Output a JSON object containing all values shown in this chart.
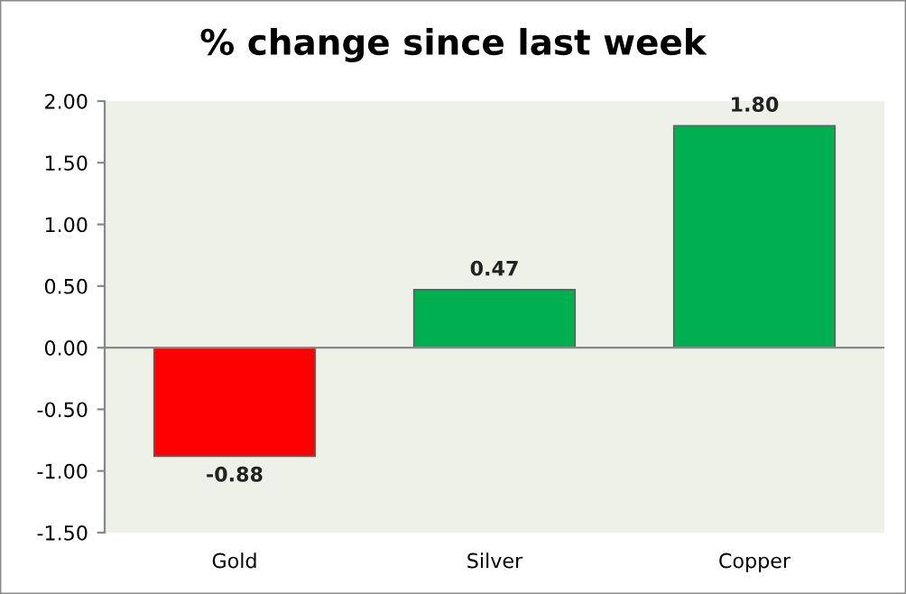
{
  "chart_data": {
    "type": "bar",
    "title": "% change since last week",
    "categories": [
      "Gold",
      "Silver",
      "Copper"
    ],
    "values": [
      -0.88,
      0.47,
      1.8
    ],
    "colors": [
      "#ff0000",
      "#00b050",
      "#00b050"
    ],
    "value_labels": [
      "-0.88",
      "0.47",
      "1.80"
    ],
    "ylim": [
      -1.5,
      2.0
    ],
    "yticks": [
      {
        "value": -1.5,
        "label": "-1.50"
      },
      {
        "value": -1.0,
        "label": "-1.00"
      },
      {
        "value": -0.5,
        "label": "-0.50"
      },
      {
        "value": 0,
        "label": "0.00"
      },
      {
        "value": 0.5,
        "label": "0.50"
      },
      {
        "value": 1.0,
        "label": "1.00"
      },
      {
        "value": 1.5,
        "label": "1.50"
      },
      {
        "value": 2.0,
        "label": "2.00"
      }
    ]
  }
}
